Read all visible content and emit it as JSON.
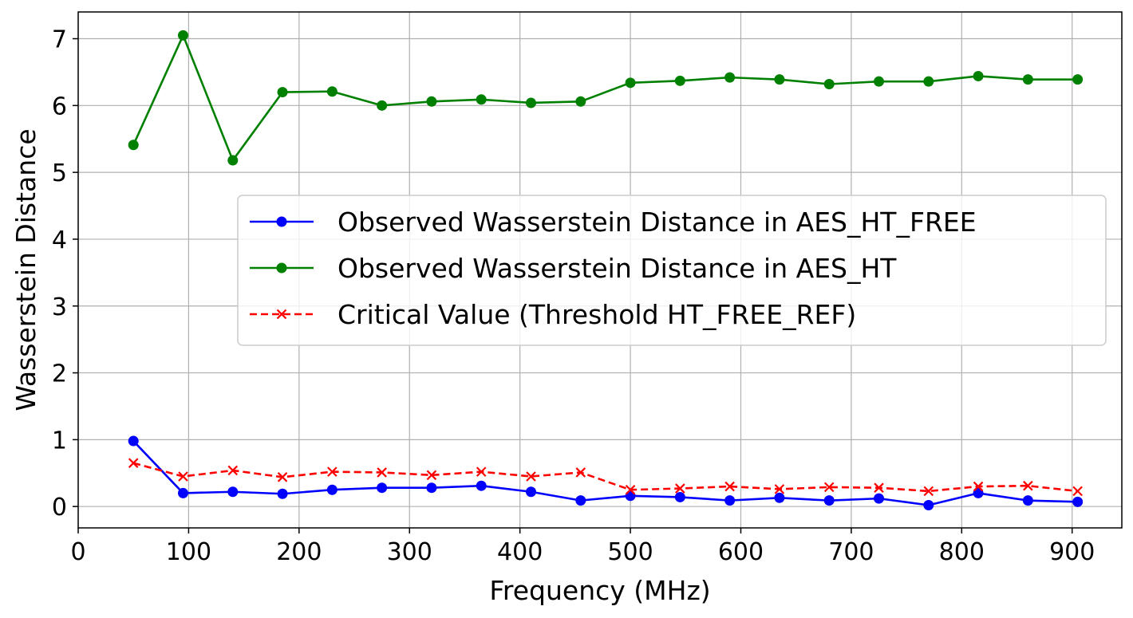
{
  "chart_data": {
    "type": "line",
    "title": "",
    "xlabel": "Frequency (MHz)",
    "ylabel": "Wasserstein Distance",
    "xlim": [
      0,
      945
    ],
    "ylim": [
      -0.32,
      7.4
    ],
    "xticks": [
      0,
      100,
      200,
      300,
      400,
      500,
      600,
      700,
      800,
      900
    ],
    "yticks": [
      0,
      1,
      2,
      3,
      4,
      5,
      6,
      7
    ],
    "grid": true,
    "legend_position": "center-right",
    "x": [
      50,
      95,
      140,
      185,
      230,
      275,
      320,
      365,
      410,
      455,
      500,
      545,
      590,
      635,
      680,
      725,
      770,
      815,
      860,
      905
    ],
    "series": [
      {
        "name": "Observed Wasserstein Distance in AES_HT_FREE",
        "color": "#0000ff",
        "marker": "circle",
        "linestyle": "solid",
        "values": [
          0.98,
          0.2,
          0.22,
          0.19,
          0.25,
          0.28,
          0.28,
          0.31,
          0.22,
          0.09,
          0.16,
          0.14,
          0.09,
          0.13,
          0.09,
          0.12,
          0.02,
          0.2,
          0.09,
          0.07
        ]
      },
      {
        "name": "Observed Wasserstein Distance in AES_HT",
        "color": "#008000",
        "marker": "circle",
        "linestyle": "solid",
        "values": [
          5.41,
          7.05,
          5.18,
          6.2,
          6.21,
          6.0,
          6.06,
          6.09,
          6.04,
          6.06,
          6.34,
          6.37,
          6.42,
          6.39,
          6.32,
          6.36,
          6.36,
          6.44,
          6.39,
          6.39
        ]
      },
      {
        "name": "Critical Value (Threshold HT_FREE_REF)",
        "color": "#ff0000",
        "marker": "x",
        "linestyle": "dashed",
        "values": [
          0.65,
          0.45,
          0.54,
          0.44,
          0.52,
          0.51,
          0.47,
          0.52,
          0.45,
          0.51,
          0.25,
          0.27,
          0.3,
          0.26,
          0.29,
          0.28,
          0.23,
          0.3,
          0.31,
          0.23
        ]
      }
    ]
  }
}
